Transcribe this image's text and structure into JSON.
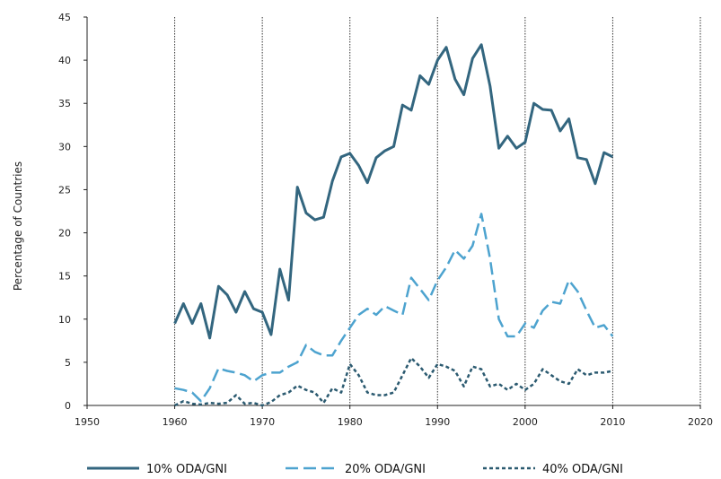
{
  "chart_data": {
    "type": "line",
    "title": "",
    "xlabel": "",
    "ylabel": "Percentage of Countries",
    "xlim": [
      1950,
      2020
    ],
    "ylim": [
      0,
      45
    ],
    "xticks": [
      1950,
      1960,
      1970,
      1980,
      1990,
      2000,
      2010,
      2020
    ],
    "yticks": [
      0,
      5,
      10,
      15,
      20,
      25,
      30,
      35,
      40,
      45
    ],
    "vertical_gridlines": [
      1960,
      1970,
      1980,
      1990,
      2000,
      2010,
      2020
    ],
    "legend_position": "bottom",
    "x": [
      1960,
      1961,
      1962,
      1963,
      1964,
      1965,
      1966,
      1967,
      1968,
      1969,
      1970,
      1971,
      1972,
      1973,
      1974,
      1975,
      1976,
      1977,
      1978,
      1979,
      1980,
      1981,
      1982,
      1983,
      1984,
      1985,
      1986,
      1987,
      1988,
      1989,
      1990,
      1991,
      1992,
      1993,
      1994,
      1995,
      1996,
      1997,
      1998,
      1999,
      2000,
      2001,
      2002,
      2003,
      2004,
      2005,
      2006,
      2007,
      2008,
      2009,
      2010
    ],
    "series": [
      {
        "name": "10% ODA/GNI",
        "color": "#33667f",
        "dash": "solid",
        "values": [
          9.5,
          11.8,
          9.5,
          11.8,
          7.8,
          13.8,
          12.8,
          10.8,
          13.2,
          11.2,
          10.8,
          8.2,
          15.8,
          12.2,
          25.3,
          22.3,
          21.5,
          21.8,
          26.0,
          28.8,
          29.2,
          27.8,
          25.8,
          28.7,
          29.5,
          30.0,
          34.8,
          34.2,
          38.2,
          37.2,
          40.0,
          41.5,
          37.8,
          36.0,
          40.2,
          41.8,
          37.0,
          29.8,
          31.2,
          29.8,
          30.5,
          35.0,
          34.3,
          34.2,
          31.8,
          33.2,
          28.7,
          28.5,
          25.7,
          29.3,
          28.8
        ]
      },
      {
        "name": "20% ODA/GNI",
        "color": "#4da3cf",
        "dash": "dashed",
        "values": [
          2.0,
          1.8,
          1.5,
          0.5,
          2.0,
          4.3,
          4.0,
          3.8,
          3.5,
          2.8,
          3.5,
          3.8,
          3.8,
          4.5,
          5.0,
          7.0,
          6.2,
          5.8,
          5.8,
          7.5,
          9.0,
          10.5,
          11.2,
          10.5,
          11.5,
          11.0,
          10.5,
          14.8,
          13.5,
          12.2,
          14.5,
          16.0,
          18.0,
          17.0,
          18.5,
          22.2,
          17.0,
          10.0,
          8.0,
          8.0,
          9.5,
          9.0,
          11.0,
          12.0,
          11.8,
          14.5,
          13.2,
          11.0,
          9.0,
          9.3,
          8.0
        ]
      },
      {
        "name": "40% ODA/GNI",
        "color": "#2b5a70",
        "dash": "dotted",
        "values": [
          0.0,
          0.5,
          0.2,
          0.1,
          0.3,
          0.2,
          0.3,
          1.2,
          0.2,
          0.3,
          0.0,
          0.4,
          1.2,
          1.5,
          2.3,
          1.8,
          1.5,
          0.3,
          2.0,
          1.5,
          4.8,
          3.5,
          1.5,
          1.2,
          1.2,
          1.5,
          3.5,
          5.5,
          4.5,
          3.2,
          4.8,
          4.5,
          4.0,
          2.2,
          4.5,
          4.2,
          2.2,
          2.5,
          1.8,
          2.5,
          1.8,
          2.5,
          4.2,
          3.5,
          2.8,
          2.5,
          4.2,
          3.5,
          3.8,
          3.8,
          4.0
        ]
      }
    ]
  }
}
